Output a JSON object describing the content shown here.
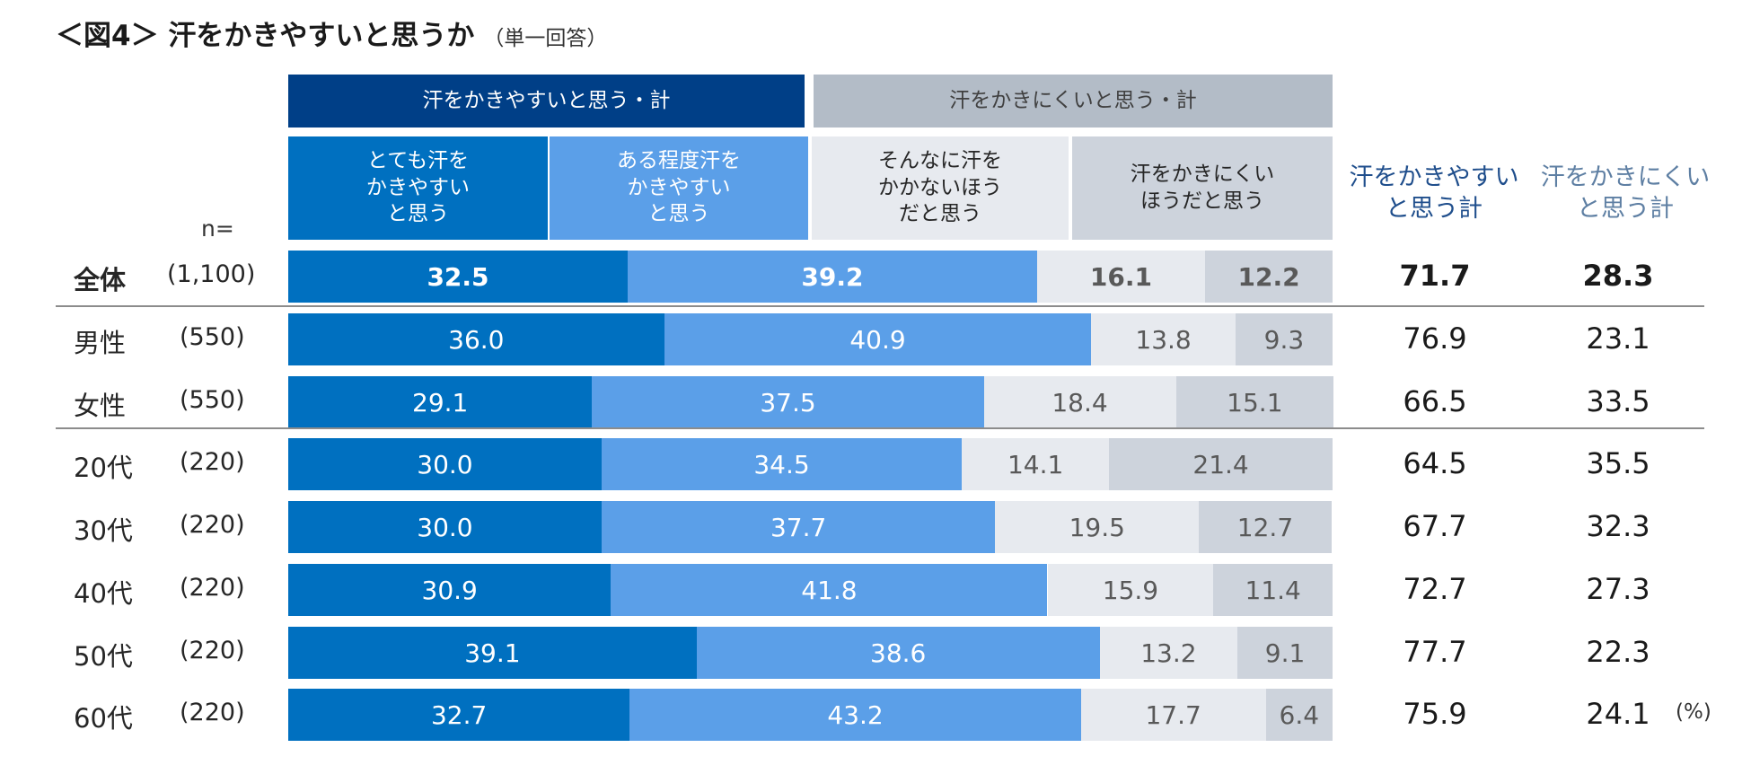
{
  "title": "＜図4＞ 汗をかきやすいと思うか",
  "title_note": "（単一回答）",
  "chart_data": {
    "type": "bar",
    "orientation": "horizontal",
    "stacked": true,
    "title": "＜図4＞ 汗をかきやすいと思うか（単一回答）",
    "group_headers": [
      "汗をかきやすいと思う・計",
      "汗をかきにくいと思う・計"
    ],
    "series_names": [
      "とても汗を\nかきやすい\nと思う",
      "ある程度汗を\nかきやすい\nと思う",
      "そんなに汗を\nかかないほう\nだと思う",
      "汗をかきにくい\nほうだと思う"
    ],
    "series_colors": [
      "#0070c0",
      "#5b9fe8",
      "#e7eaef",
      "#cdd3dc"
    ],
    "series_text_colors": [
      "#ffffff",
      "#ffffff",
      "#595959",
      "#595959"
    ],
    "n_label": "n=",
    "summary_headers": [
      "汗をかきやすい\nと思う計",
      "汗をかきにくい\nと思う計"
    ],
    "summary_colors": [
      "#1f4e8c",
      "#5e7fa3"
    ],
    "unit": "(%)",
    "rows": [
      {
        "label": "全体",
        "n": "(1,100)",
        "values": [
          32.5,
          39.2,
          16.1,
          12.2
        ],
        "totals": [
          71.7,
          28.3
        ],
        "bold": true
      },
      {
        "label": "男性",
        "n": "(550)",
        "values": [
          36.0,
          40.9,
          13.8,
          9.3
        ],
        "totals": [
          76.9,
          23.1
        ]
      },
      {
        "label": "女性",
        "n": "(550)",
        "values": [
          29.1,
          37.5,
          18.4,
          15.1
        ],
        "totals": [
          66.5,
          33.5
        ]
      },
      {
        "label": "20代",
        "n": "(220)",
        "values": [
          30.0,
          34.5,
          14.1,
          21.4
        ],
        "totals": [
          64.5,
          35.5
        ]
      },
      {
        "label": "30代",
        "n": "(220)",
        "values": [
          30.0,
          37.7,
          19.5,
          12.7
        ],
        "totals": [
          67.7,
          32.3
        ]
      },
      {
        "label": "40代",
        "n": "(220)",
        "values": [
          30.9,
          41.8,
          15.9,
          11.4
        ],
        "totals": [
          72.7,
          27.3
        ]
      },
      {
        "label": "50代",
        "n": "(220)",
        "values": [
          39.1,
          38.6,
          13.2,
          9.1
        ],
        "totals": [
          77.7,
          22.3
        ]
      },
      {
        "label": "60代",
        "n": "(220)",
        "values": [
          32.7,
          43.2,
          17.7,
          6.4
        ],
        "totals": [
          75.9,
          24.1
        ]
      }
    ],
    "xlim": [
      0,
      100
    ]
  }
}
